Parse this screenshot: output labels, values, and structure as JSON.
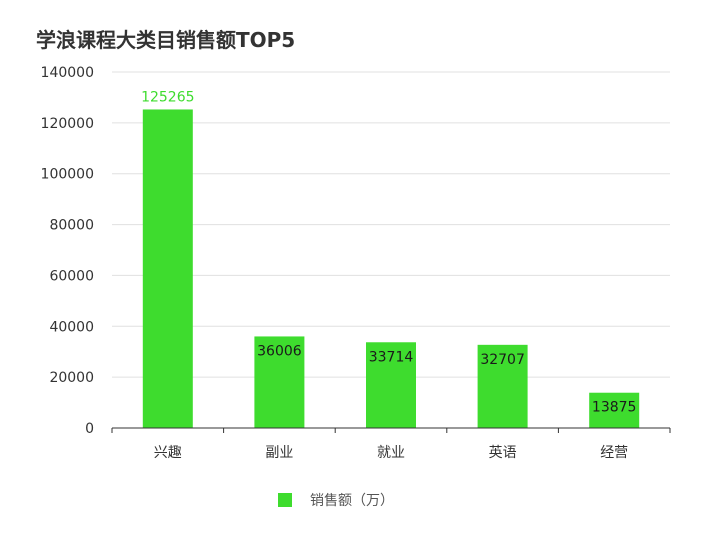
{
  "chart_data": {
    "type": "bar",
    "title": "学浪课程大类目销售额TOP5",
    "categories": [
      "兴趣",
      "副业",
      "就业",
      "英语",
      "经营"
    ],
    "series": [
      {
        "name": "销售额（万）",
        "values": [
          125265,
          36006,
          33714,
          32707,
          13875
        ],
        "color": "#3edc2e"
      }
    ],
    "y_ticks": [
      0,
      20000,
      40000,
      60000,
      80000,
      100000,
      120000,
      140000
    ],
    "y_tick_labels": [
      "0",
      "20000",
      "40000",
      "60000",
      "80000",
      "100000",
      "120000",
      "140000"
    ],
    "ylim": [
      0,
      140000
    ],
    "xlabel": "",
    "ylabel": "",
    "grid": true,
    "legend": "bottom-center",
    "label_colors": {
      "outside": "#3edc2e",
      "inside": "#1a1a1a"
    }
  }
}
